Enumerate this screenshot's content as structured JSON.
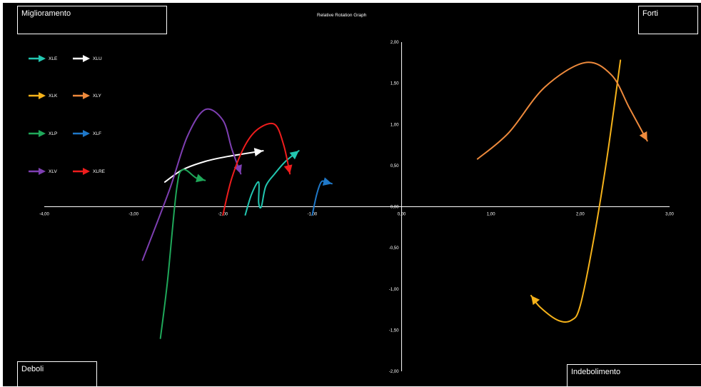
{
  "chart_data": {
    "type": "line",
    "title": "Relative Rotation Graph",
    "xlim": [
      -4,
      3
    ],
    "ylim": [
      -2,
      2
    ],
    "x_ticks": [
      "-4,00",
      "-3,00",
      "-2,00",
      "-1,00",
      "0,00",
      "1,00",
      "2,00",
      "3,00"
    ],
    "y_ticks": [
      "2,00",
      "1,50",
      "1,00",
      "0,50",
      "0,00",
      "-0,50",
      "-1,00",
      "-1,50",
      "-2,00"
    ],
    "grid": false,
    "legend_position": "top-left",
    "quadrants": {
      "top_left": "Miglioramento",
      "top_right": "Forti",
      "bottom_left": "Deboli",
      "bottom_right": "Indebolimento"
    },
    "series": [
      {
        "name": "XLE",
        "color": "#22c6b0",
        "points": [
          [
            -1.75,
            -0.1
          ],
          [
            -1.68,
            0.15
          ],
          [
            -1.6,
            0.3
          ],
          [
            -1.6,
            0.05
          ],
          [
            -1.57,
            0.0
          ],
          [
            -1.52,
            0.25
          ],
          [
            -1.42,
            0.4
          ],
          [
            -1.3,
            0.55
          ],
          [
            -1.15,
            0.68
          ]
        ]
      },
      {
        "name": "XLU",
        "color": "#ffffff",
        "points": [
          [
            -2.65,
            0.3
          ],
          [
            -2.45,
            0.45
          ],
          [
            -2.2,
            0.55
          ],
          [
            -1.95,
            0.61
          ],
          [
            -1.55,
            0.68
          ]
        ]
      },
      {
        "name": "XLK",
        "color": "#f5b21a",
        "points": [
          [
            2.45,
            1.78
          ],
          [
            2.3,
            0.6
          ],
          [
            2.15,
            -0.4
          ],
          [
            2.0,
            -1.2
          ],
          [
            1.9,
            -1.38
          ],
          [
            1.75,
            -1.38
          ],
          [
            1.55,
            -1.22
          ],
          [
            1.45,
            -1.08
          ]
        ]
      },
      {
        "name": "XLY",
        "color": "#ee8a3c",
        "points": [
          [
            0.85,
            0.58
          ],
          [
            1.2,
            0.9
          ],
          [
            1.6,
            1.45
          ],
          [
            2.05,
            1.75
          ],
          [
            2.35,
            1.6
          ],
          [
            2.55,
            1.2
          ],
          [
            2.75,
            0.8
          ]
        ]
      },
      {
        "name": "XLP",
        "color": "#1fa85a",
        "points": [
          [
            -2.7,
            -1.6
          ],
          [
            -2.62,
            -0.9
          ],
          [
            -2.52,
            0.2
          ],
          [
            -2.45,
            0.45
          ],
          [
            -2.3,
            0.35
          ],
          [
            -2.2,
            0.32
          ]
        ]
      },
      {
        "name": "XLF",
        "color": "#1f78c8",
        "points": [
          [
            -1.0,
            -0.1
          ],
          [
            -0.95,
            0.15
          ],
          [
            -0.9,
            0.3
          ],
          [
            -0.85,
            0.3
          ],
          [
            -0.78,
            0.28
          ]
        ]
      },
      {
        "name": "XLV",
        "color": "#7e3fb2",
        "points": [
          [
            -2.9,
            -0.65
          ],
          [
            -2.6,
            0.2
          ],
          [
            -2.4,
            0.85
          ],
          [
            -2.2,
            1.18
          ],
          [
            -2.0,
            1.05
          ],
          [
            -1.9,
            0.7
          ],
          [
            -1.8,
            0.4
          ]
        ]
      },
      {
        "name": "XLRE",
        "color": "#ef1d1d",
        "points": [
          [
            -2.0,
            -0.1
          ],
          [
            -1.9,
            0.35
          ],
          [
            -1.75,
            0.75
          ],
          [
            -1.6,
            0.95
          ],
          [
            -1.42,
            1.0
          ],
          [
            -1.32,
            0.75
          ],
          [
            -1.25,
            0.4
          ]
        ]
      }
    ]
  }
}
